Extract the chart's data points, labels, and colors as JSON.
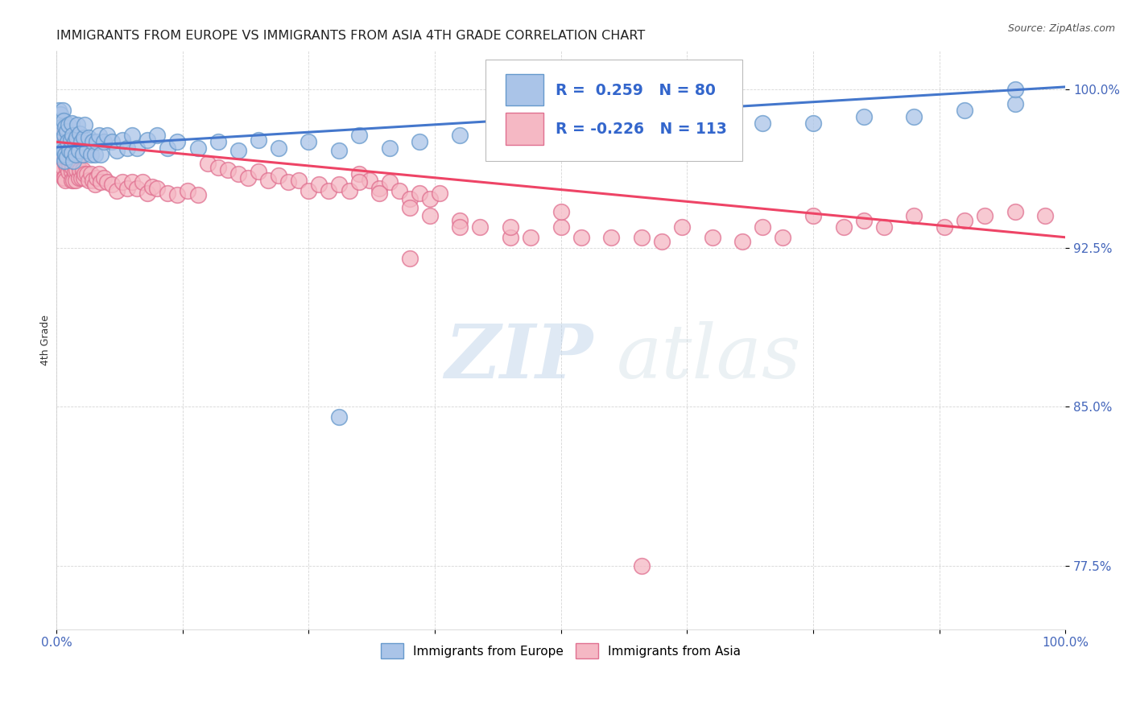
{
  "title": "IMMIGRANTS FROM EUROPE VS IMMIGRANTS FROM ASIA 4TH GRADE CORRELATION CHART",
  "source": "Source: ZipAtlas.com",
  "ylabel": "4th Grade",
  "ytick_labels": [
    "100.0%",
    "92.5%",
    "85.0%",
    "77.5%"
  ],
  "ytick_values": [
    1.0,
    0.925,
    0.85,
    0.775
  ],
  "y_min": 0.745,
  "y_max": 1.018,
  "x_min": 0.0,
  "x_max": 1.0,
  "europe_color": "#aac4e8",
  "europe_edge_color": "#6699cc",
  "asia_color": "#f5b8c4",
  "asia_edge_color": "#e07090",
  "europe_line_color": "#4477cc",
  "asia_line_color": "#ee4466",
  "europe_R": 0.259,
  "europe_N": 80,
  "asia_R": -0.226,
  "asia_N": 113,
  "legend_label_europe": "Immigrants from Europe",
  "legend_label_asia": "Immigrants from Asia",
  "watermark_zip": "ZIP",
  "watermark_atlas": "atlas",
  "eu_line_x0": 0.0,
  "eu_line_x1": 1.0,
  "eu_line_y0": 0.9725,
  "eu_line_y1": 1.001,
  "as_line_x0": 0.0,
  "as_line_x1": 1.0,
  "as_line_y0": 0.975,
  "as_line_y1": 0.93
}
